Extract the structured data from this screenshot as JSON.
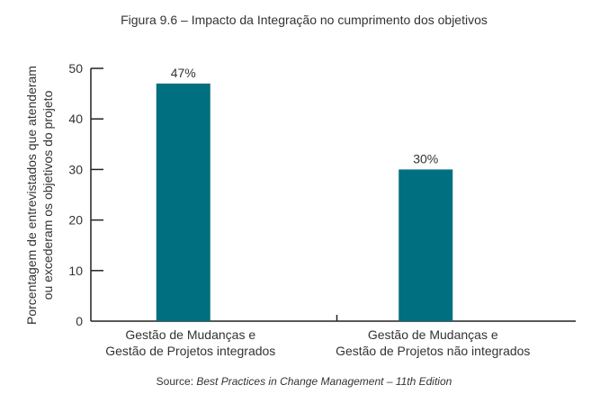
{
  "chart_data": {
    "type": "bar",
    "title": "Figura 9.6 – Impacto da Integração no cumprimento dos objetivos",
    "ylabel": [
      "Porcentagem de entrevistados que atenderam",
      "ou excederam os objetivos do projeto"
    ],
    "xlabel": "",
    "categories": [
      [
        "Gestão de Mudanças e",
        "Gestão de Projetos integrados"
      ],
      [
        "Gestão de Mudanças e",
        "Gestão de Projetos não integrados"
      ]
    ],
    "values": [
      47,
      30
    ],
    "data_labels": [
      "47%",
      "30%"
    ],
    "yticks": [
      0,
      10,
      20,
      30,
      40,
      50
    ],
    "ylim": [
      0,
      50
    ],
    "grid": false,
    "bar_color": "#006f7f",
    "source_prefix": "Source: ",
    "source_italic": "Best Practices in Change Management – 11th Edition"
  }
}
